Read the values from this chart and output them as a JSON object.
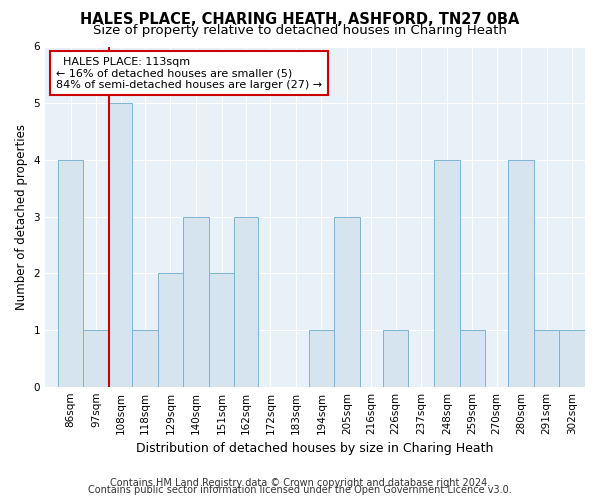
{
  "title": "HALES PLACE, CHARING HEATH, ASHFORD, TN27 0BA",
  "subtitle": "Size of property relative to detached houses in Charing Heath",
  "xlabel": "Distribution of detached houses by size in Charing Heath",
  "ylabel": "Number of detached properties",
  "annotation_line1": "HALES PLACE: 113sqm",
  "annotation_line2": "← 16% of detached houses are smaller (5)",
  "annotation_line3": "84% of semi-detached houses are larger (27) →",
  "footer1": "Contains HM Land Registry data © Crown copyright and database right 2024.",
  "footer2": "Contains public sector information licensed under the Open Government Licence v3.0.",
  "bar_edges": [
    86,
    97,
    108,
    118,
    129,
    140,
    151,
    162,
    172,
    183,
    194,
    205,
    216,
    226,
    237,
    248,
    259,
    270,
    280,
    291,
    302
  ],
  "bar_heights": [
    4,
    1,
    5,
    1,
    2,
    3,
    2,
    3,
    0,
    0,
    1,
    3,
    0,
    1,
    0,
    4,
    1,
    0,
    4,
    1,
    1
  ],
  "bar_color": "#d6e4f0",
  "bar_edge_color": "#7fb3d3",
  "red_line_x": 108,
  "ylim": [
    0,
    6
  ],
  "yticks": [
    0,
    1,
    2,
    3,
    4,
    5,
    6
  ],
  "background_color": "#e8f0f8",
  "fig_background_color": "#ffffff",
  "annotation_box_facecolor": "#ffffff",
  "annotation_box_edgecolor": "#cc0000",
  "red_line_color": "#cc0000",
  "title_fontsize": 10.5,
  "subtitle_fontsize": 9.5,
  "xlabel_fontsize": 9,
  "ylabel_fontsize": 8.5,
  "tick_fontsize": 7.5,
  "annotation_fontsize": 8,
  "footer_fontsize": 7
}
